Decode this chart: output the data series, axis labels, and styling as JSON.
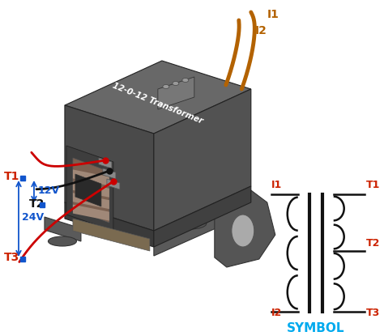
{
  "bg_color": "#ffffff",
  "symbol_label": "SYMBOL",
  "symbol_label_color": "#00aaee",
  "input_wire_color": "#b36200",
  "red_wire_color": "#cc0000",
  "black_wire_color": "#111111",
  "blue_color": "#1155cc",
  "red_label_color": "#cc2200",
  "T1_label": "T1",
  "T2_label": "T2",
  "T3_label": "T3",
  "I1_label": "I1",
  "I2_label": "I2",
  "voltage_12v": "12V",
  "voltage_24v": "24V",
  "transformer_label": "12-0-12 Transformer",
  "body_top_color": "#6a6a6a",
  "body_front_color": "#4a4a4a",
  "body_right_color": "#525252",
  "body_dark_color": "#303030",
  "coil_color": "#8a7060",
  "coil_stripe_color": "#a08878",
  "foot_color": "#888888",
  "terminal_gray": "#999999"
}
